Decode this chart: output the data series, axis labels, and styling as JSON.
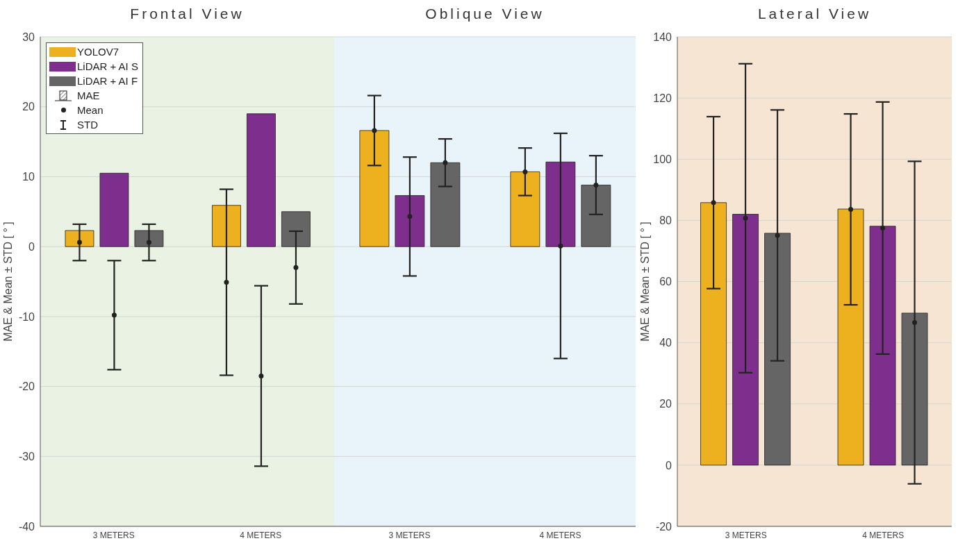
{
  "chart_data": [
    {
      "type": "bar",
      "title": "Frontal View",
      "categories": [
        "3 METERS",
        "4 METERS"
      ],
      "ylabel": "MAE & Mean ± STD [ ° ]",
      "ylim": [
        -40,
        30
      ],
      "yticks": [
        -40,
        -30,
        -20,
        -10,
        0,
        10,
        20,
        30
      ],
      "grid": "y",
      "legend": "top left",
      "annotations": [
        "MAE",
        "STD"
      ],
      "series": [
        {
          "name": "YOLOV7",
          "color": "#edb120",
          "values": [
            2.3,
            5.9
          ]
        },
        {
          "name": "LiDAR + AI S",
          "color": "#7e2f8e",
          "values": [
            10.5,
            19.0
          ]
        },
        {
          "name": "LiDAR + AI F",
          "color": "#656565",
          "values": [
            2.3,
            5.0
          ]
        },
        {
          "type": "scatter",
          "name": "Mean",
          "color": "#222222",
          "x": [
            "3 METERS",
            "4 METERS"
          ],
          "values": [
            0.6,
            -5.1
          ],
          "errors": [
            2.6,
            13.3
          ]
        },
        {
          "type": "scatter",
          "color": "#222222",
          "x": [
            "3 METERS",
            "4 METERS"
          ],
          "values": [
            -9.8,
            -18.5
          ],
          "errors": [
            7.8,
            12.9
          ]
        },
        {
          "type": "scatter",
          "color": "#222222",
          "x": [
            "3 METERS",
            "4 METERS"
          ],
          "values": [
            0.6,
            -3.0
          ],
          "errors": [
            2.6,
            5.2
          ]
        }
      ]
    },
    {
      "type": "bar",
      "title": "Oblique View",
      "categories": [
        "3 METERS",
        "4 METERS"
      ],
      "ylim": [
        -40,
        30
      ],
      "yticks": [
        -40,
        -30,
        -20,
        -10,
        0,
        10,
        20,
        30
      ],
      "grid": "y",
      "tick_labels": "x",
      "series": [
        {
          "color": "#edb120",
          "values": [
            16.6,
            10.7
          ]
        },
        {
          "color": "#7e2f8e",
          "values": [
            7.3,
            12.1
          ]
        },
        {
          "color": "#656565",
          "values": [
            12.0,
            8.8
          ]
        },
        {
          "type": "scatter",
          "color": "#222222",
          "x": [
            "3 METERS",
            "4 METERS"
          ],
          "values": [
            16.6,
            10.7
          ],
          "errors": [
            5.0,
            3.4
          ]
        },
        {
          "type": "scatter",
          "color": "#222222",
          "x": [
            "3 METERS",
            "4 METERS"
          ],
          "values": [
            4.3,
            0.1
          ],
          "errors": [
            8.5,
            16.1
          ]
        },
        {
          "type": "scatter",
          "color": "#222222",
          "x": [
            "3 METERS",
            "4 METERS"
          ],
          "values": [
            12.0,
            8.8
          ],
          "errors": [
            3.4,
            4.2
          ]
        }
      ]
    },
    {
      "type": "bar",
      "title": "Lateral View",
      "categories": [
        "3 METERS",
        "4 METERS"
      ],
      "ylabel": "MAE & Mean ± STD [ ° ]",
      "ylim": [
        -20,
        140
      ],
      "yticks": [
        -20,
        0,
        20,
        40,
        60,
        80,
        100,
        120,
        140
      ],
      "grid": "y",
      "series": [
        {
          "color": "#edb120",
          "values": [
            85.8,
            83.7
          ]
        },
        {
          "color": "#7e2f8e",
          "values": [
            82.0,
            78.1
          ]
        },
        {
          "color": "#656565",
          "values": [
            75.8,
            49.7
          ]
        },
        {
          "type": "scatter",
          "color": "#222222",
          "x": [
            "3 METERS",
            "4 METERS"
          ],
          "values": [
            85.8,
            83.6
          ],
          "errors": [
            28.1,
            31.2
          ]
        },
        {
          "type": "scatter",
          "color": "#222222",
          "x": [
            "3 METERS",
            "4 METERS"
          ],
          "values": [
            80.7,
            77.5
          ],
          "errors": [
            50.5,
            41.2
          ]
        },
        {
          "type": "scatter",
          "color": "#222222",
          "x": [
            "3 METERS",
            "4 METERS"
          ],
          "values": [
            75.1,
            46.6
          ],
          "errors": [
            41.0,
            52.7
          ]
        }
      ]
    }
  ]
}
